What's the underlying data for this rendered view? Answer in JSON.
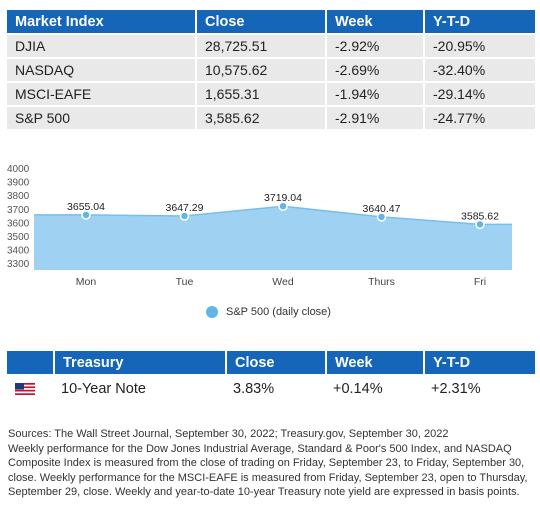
{
  "market_table": {
    "headers": [
      "Market Index",
      "Close",
      "Week",
      "Y-T-D"
    ],
    "rows": [
      [
        "DJIA",
        "28,725.51",
        "-2.92%",
        "-20.95%"
      ],
      [
        "NASDAQ",
        "10,575.62",
        "-2.69%",
        "-32.40%"
      ],
      [
        "MSCI-EAFE",
        "1,655.31",
        "-1.94%",
        "-29.14%"
      ],
      [
        "S&P 500",
        "3,585.62",
        "-2.91%",
        "-24.77%"
      ]
    ]
  },
  "chart_data": {
    "type": "area",
    "categories": [
      "Mon",
      "Tue",
      "Wed",
      "Thurs",
      "Fri"
    ],
    "series": [
      {
        "name": "S&P 500 (daily close)",
        "values": [
          3655.04,
          3647.29,
          3719.04,
          3640.47,
          3585.62
        ],
        "data_labels": [
          "3655.04",
          "3647.29",
          "3719.04",
          "3640.47",
          "3585.62"
        ]
      }
    ],
    "y_ticks": [
      "4000",
      "3900",
      "3800",
      "3700",
      "3600",
      "3500",
      "3400",
      "3300"
    ],
    "ylim": [
      3250,
      4000
    ],
    "grid": false,
    "legend": "bottom",
    "colors": {
      "fill": "#9fd2f2",
      "line": "#79bde9",
      "point": "#63b5e8"
    }
  },
  "legend": {
    "label": "S&P 500 (daily close)"
  },
  "treasury_table": {
    "headers": [
      "Treasury",
      "Close",
      "Week",
      "Y-T-D"
    ],
    "row": [
      "10-Year Note",
      "3.83%",
      "+0.14%",
      "+2.31%"
    ],
    "flag_icon": "us-flag-icon"
  },
  "notes": {
    "sources": "Sources: The Wall Street Journal, September 30, 2022; Treasury.gov, September 30, 2022",
    "body": "Weekly performance for the Dow Jones Industrial Average, Standard & Poor's 500 Index, and NASDAQ Composite Index is measured from the close of trading on Friday, September 23, to Friday, September 30, close. Weekly performance for the MSCI-EAFE is measured from Friday, September 23, open to Thursday, September 29, close. Weekly and year-to-date 10-year Treasury note yield are expressed in basis points."
  },
  "colors": {
    "header_bg": "#1565b8",
    "row_bg": "#e9e9e9"
  }
}
